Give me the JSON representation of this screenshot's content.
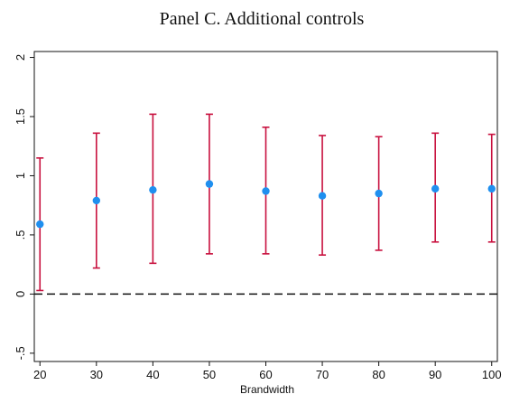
{
  "chart_data": {
    "type": "scatter",
    "title": "Panel C. Additional controls",
    "xlabel": "Brandwidth",
    "ylabel": "",
    "x": [
      20,
      30,
      40,
      50,
      60,
      70,
      80,
      90,
      100
    ],
    "series": [
      {
        "y": [
          0.59,
          0.79,
          0.88,
          0.93,
          0.87,
          0.83,
          0.85,
          0.89,
          0.89
        ],
        "ci_lower": [
          0.03,
          0.22,
          0.26,
          0.34,
          0.34,
          0.33,
          0.37,
          0.44,
          0.44
        ],
        "ci_upper": [
          1.15,
          1.36,
          1.52,
          1.52,
          1.41,
          1.34,
          1.33,
          1.36,
          1.35
        ]
      }
    ],
    "xticks": [
      "20",
      "30",
      "40",
      "50",
      "60",
      "70",
      "80",
      "90",
      "100"
    ],
    "yticks": [
      "-.5",
      "0",
      ".5",
      "1",
      "1.5",
      "2"
    ],
    "ytick_values": [
      -0.5,
      0,
      0.5,
      1,
      1.5,
      2
    ],
    "xlim": [
      19,
      101
    ],
    "ylim": [
      -0.57,
      2.05
    ],
    "reference_line_y": 0,
    "grid": false,
    "colors": {
      "point": "#1f8fef",
      "errorbar": "#c8103e",
      "reference_line": "#111111",
      "frame": "#111111"
    }
  }
}
